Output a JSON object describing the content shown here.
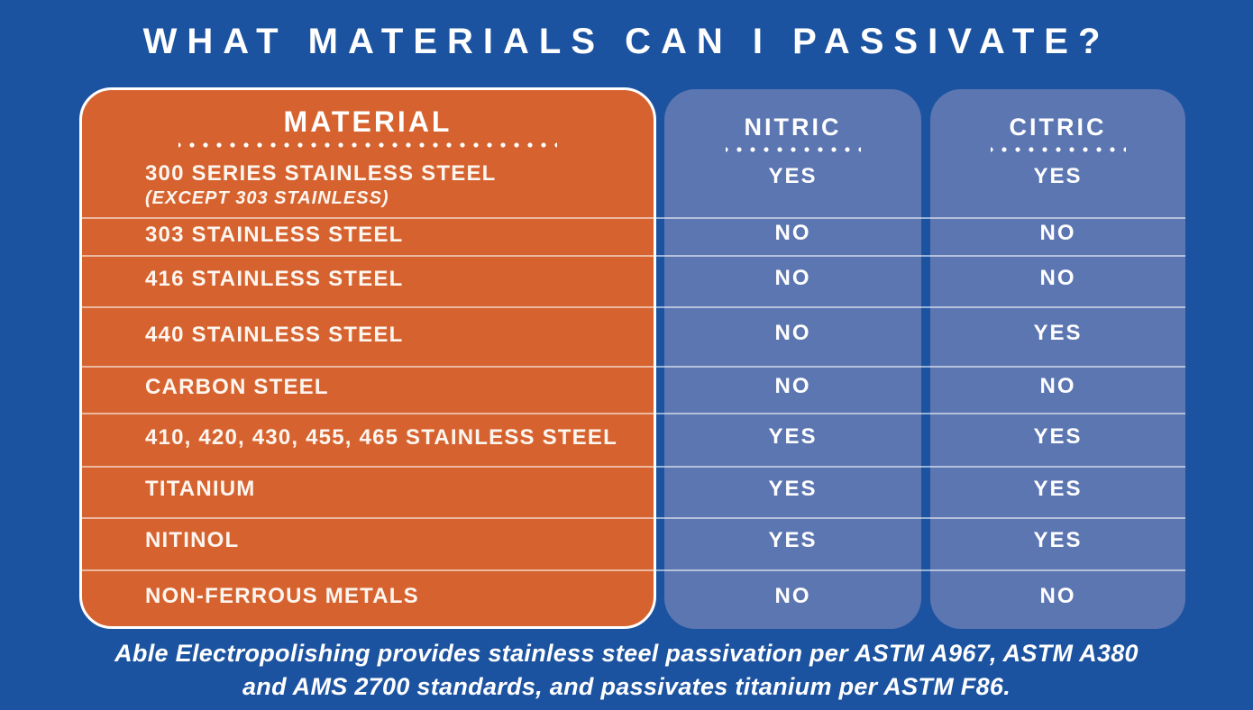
{
  "title": "WHAT MATERIALS CAN I PASSIVATE?",
  "colors": {
    "background": "#1C53A0",
    "material_panel": "#D6632F",
    "acid_panel": "#5C76B2",
    "text": "#FFFFFF"
  },
  "table": {
    "material_header": "MATERIAL",
    "nitric_header": "NITRIC",
    "citric_header": "CITRIC",
    "rows": [
      {
        "material": "300 SERIES STAINLESS STEEL",
        "note": "(EXCEPT 303 STAINLESS)",
        "nitric": "YES",
        "citric": "YES"
      },
      {
        "material": "303 STAINLESS STEEL",
        "nitric": "NO",
        "citric": "NO"
      },
      {
        "material": "416 STAINLESS STEEL",
        "nitric": "NO",
        "citric": "NO"
      },
      {
        "material": "440 STAINLESS STEEL",
        "nitric": "NO",
        "citric": "YES"
      },
      {
        "material": "CARBON STEEL",
        "nitric": "NO",
        "citric": "NO"
      },
      {
        "material": "410, 420, 430, 455, 465 STAINLESS STEEL",
        "nitric": "YES",
        "citric": "YES"
      },
      {
        "material": "TITANIUM",
        "nitric": "YES",
        "citric": "YES"
      },
      {
        "material": "NITINOL",
        "nitric": "YES",
        "citric": "YES"
      },
      {
        "material": "NON-FERROUS METALS",
        "nitric": "NO",
        "citric": "NO"
      }
    ]
  },
  "footer": {
    "line1": "Able Electropolishing provides stainless steel passivation per ASTM A967, ASTM A380",
    "line2": "and AMS 2700 standards, and passivates titanium per ASTM F86."
  },
  "chart_data": {
    "type": "table",
    "title": "WHAT MATERIALS CAN I PASSIVATE?",
    "columns": [
      "MATERIAL",
      "NITRIC",
      "CITRIC"
    ],
    "rows": [
      [
        "300 SERIES STAINLESS STEEL (EXCEPT 303 STAINLESS)",
        "YES",
        "YES"
      ],
      [
        "303 STAINLESS STEEL",
        "NO",
        "NO"
      ],
      [
        "416 STAINLESS STEEL",
        "NO",
        "NO"
      ],
      [
        "440 STAINLESS STEEL",
        "NO",
        "YES"
      ],
      [
        "CARBON STEEL",
        "NO",
        "NO"
      ],
      [
        "410, 420, 430, 455, 465 STAINLESS STEEL",
        "YES",
        "YES"
      ],
      [
        "TITANIUM",
        "YES",
        "YES"
      ],
      [
        "NITINOL",
        "YES",
        "YES"
      ],
      [
        "NON-FERROUS METALS",
        "NO",
        "NO"
      ]
    ],
    "note": "Able Electropolishing provides stainless steel passivation per ASTM A967, ASTM A380 and AMS 2700 standards, and passivates titanium per ASTM F86."
  }
}
